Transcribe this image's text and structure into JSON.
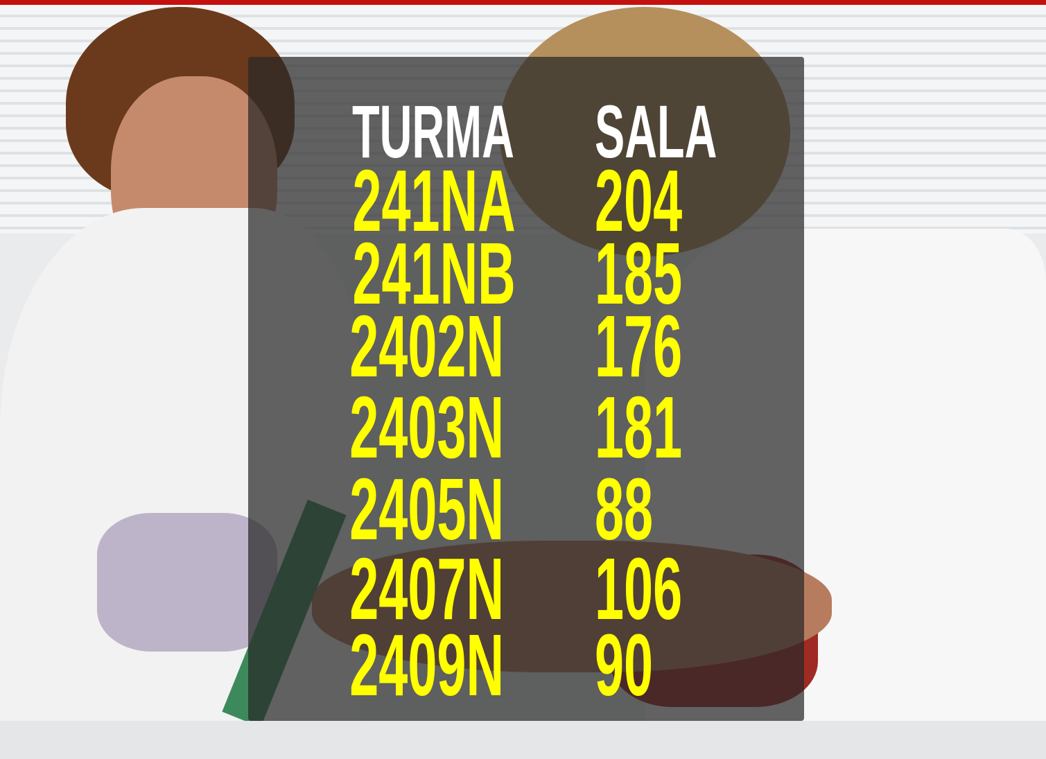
{
  "table": {
    "header": [
      "TURMA",
      "SALA"
    ],
    "rows": [
      [
        "241NA",
        "204"
      ],
      [
        "241NB",
        "185"
      ],
      [
        "2402N",
        "176"
      ],
      [
        "2403N",
        "181"
      ],
      [
        "2405N",
        "88"
      ],
      [
        "2407N",
        "106"
      ],
      [
        "2409N",
        "90"
      ]
    ]
  }
}
